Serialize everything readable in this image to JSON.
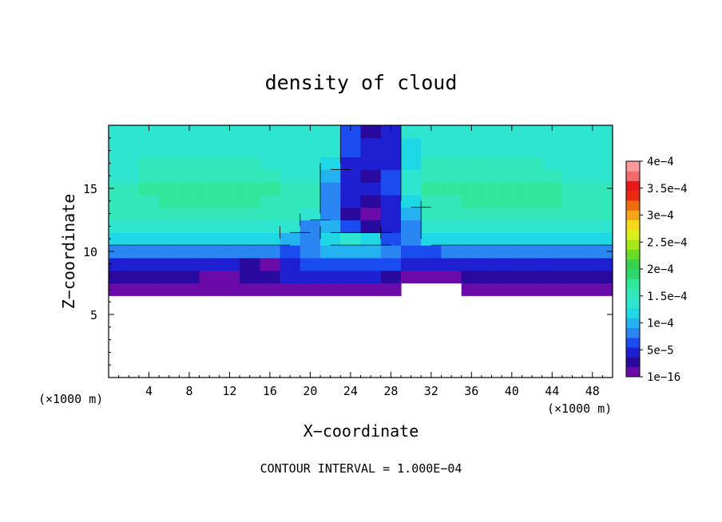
{
  "chart_data": {
    "type": "heatmap",
    "title": "density of cloud",
    "xlabel": "X−coordinate",
    "ylabel": "Z−coordinate",
    "x_unit_label": "(×1000 m)",
    "y_unit_label": "(×1000 m)",
    "footer": "CONTOUR INTERVAL = 1.000E−04",
    "xlim": [
      0,
      50
    ],
    "ylim": [
      0,
      20
    ],
    "x_ticks": [
      4,
      8,
      12,
      16,
      20,
      24,
      28,
      32,
      36,
      40,
      44,
      48
    ],
    "y_ticks": [
      5,
      10,
      15
    ],
    "colorbar": {
      "labels": [
        "1e−16",
        "5e−5",
        "1e−4",
        "1.5e−4",
        "2e−4",
        "2.5e−4",
        "3e−4",
        "3.5e−4",
        "4e−4"
      ],
      "colors": [
        "#6a0aa8",
        "#2a0a9e",
        "#1f1fd2",
        "#1b4cf0",
        "#2a86f2",
        "#25b2f0",
        "#1ed8e6",
        "#2ee6cf",
        "#33e8b8",
        "#2fe89a",
        "#2ed66c",
        "#36d24a",
        "#69dc2a",
        "#a5e81a",
        "#dcef1a",
        "#f6d81a",
        "#f6a51a",
        "#f06a10",
        "#e82a10",
        "#e61818",
        "#f26a6a",
        "#ff9a9a"
      ]
    },
    "data": {
      "x": [
        0,
        2,
        4,
        6,
        8,
        10,
        12,
        14,
        16,
        18,
        20,
        22,
        24,
        26,
        28,
        30,
        32,
        34,
        36,
        38,
        40,
        42,
        44,
        46,
        48,
        50
      ],
      "z": [
        0,
        2,
        4,
        6,
        7,
        8,
        9,
        10,
        11,
        12,
        13,
        14,
        15,
        16,
        17,
        18,
        20
      ],
      "levels_note": "values in colorbar level indices (0 = 1e-16, 21 = 4e-4); null = no cloud",
      "grid": [
        [
          null,
          null,
          null,
          null,
          null,
          null,
          null,
          null,
          null,
          null,
          null,
          null,
          null,
          null,
          null,
          null,
          null,
          null,
          null,
          null,
          null,
          null,
          null,
          null,
          null,
          null
        ],
        [
          null,
          null,
          null,
          null,
          null,
          null,
          null,
          null,
          null,
          null,
          null,
          null,
          null,
          null,
          null,
          null,
          null,
          null,
          null,
          null,
          null,
          null,
          null,
          null,
          null,
          null
        ],
        [
          null,
          null,
          null,
          null,
          null,
          null,
          null,
          null,
          null,
          null,
          null,
          null,
          null,
          null,
          null,
          null,
          null,
          null,
          null,
          null,
          null,
          null,
          null,
          null,
          null,
          null
        ],
        [
          null,
          null,
          null,
          null,
          null,
          null,
          null,
          null,
          null,
          null,
          null,
          null,
          null,
          null,
          null,
          null,
          null,
          null,
          null,
          null,
          null,
          null,
          null,
          null,
          null,
          null
        ],
        [
          0,
          0,
          0,
          0,
          0,
          0,
          0,
          0,
          0,
          0,
          0,
          0,
          0,
          0,
          0,
          null,
          null,
          null,
          0,
          0,
          0,
          0,
          0,
          0,
          0,
          0
        ],
        [
          1,
          1,
          1,
          1,
          1,
          0,
          0,
          1,
          1,
          2,
          2,
          2,
          2,
          2,
          1,
          0,
          0,
          0,
          1,
          1,
          1,
          1,
          1,
          1,
          1,
          1
        ],
        [
          2,
          2,
          2,
          2,
          2,
          2,
          2,
          1,
          0,
          2,
          3,
          3,
          3,
          3,
          3,
          2,
          2,
          2,
          2,
          2,
          2,
          2,
          2,
          2,
          2,
          2
        ],
        [
          4,
          4,
          4,
          4,
          4,
          4,
          4,
          4,
          4,
          3,
          4,
          5,
          5,
          5,
          4,
          3,
          3,
          4,
          4,
          4,
          4,
          4,
          4,
          4,
          4,
          4
        ],
        [
          6,
          6,
          6,
          6,
          6,
          6,
          6,
          6,
          6,
          5,
          4,
          6,
          7,
          6,
          3,
          4,
          6,
          6,
          6,
          6,
          6,
          6,
          6,
          6,
          6,
          6
        ],
        [
          7,
          7,
          7,
          7,
          7,
          7,
          7,
          7,
          7,
          7,
          4,
          5,
          3,
          1,
          2,
          4,
          7,
          7,
          7,
          7,
          7,
          7,
          7,
          7,
          7,
          7
        ],
        [
          8,
          8,
          8,
          8,
          8,
          8,
          8,
          8,
          8,
          8,
          7,
          4,
          1,
          0,
          2,
          5,
          8,
          8,
          8,
          8,
          8,
          8,
          8,
          8,
          8,
          8
        ],
        [
          8,
          8,
          8,
          9,
          9,
          9,
          9,
          9,
          8,
          8,
          8,
          4,
          2,
          1,
          2,
          6,
          8,
          8,
          9,
          9,
          9,
          9,
          9,
          8,
          8,
          8
        ],
        [
          8,
          8,
          9,
          9,
          9,
          9,
          9,
          9,
          9,
          8,
          8,
          4,
          2,
          2,
          3,
          7,
          9,
          9,
          9,
          9,
          9,
          9,
          9,
          8,
          8,
          8
        ],
        [
          7,
          7,
          8,
          8,
          8,
          8,
          8,
          8,
          8,
          7,
          7,
          5,
          2,
          1,
          3,
          7,
          8,
          8,
          8,
          8,
          8,
          8,
          8,
          7,
          7,
          7
        ],
        [
          7,
          7,
          8,
          8,
          8,
          8,
          8,
          8,
          7,
          7,
          7,
          6,
          2,
          2,
          2,
          6,
          8,
          8,
          8,
          8,
          8,
          8,
          7,
          7,
          7,
          7
        ],
        [
          7,
          7,
          7,
          7,
          7,
          7,
          7,
          7,
          7,
          7,
          7,
          7,
          3,
          2,
          2,
          6,
          7,
          7,
          7,
          7,
          7,
          7,
          7,
          7,
          7,
          7
        ],
        [
          7,
          7,
          7,
          7,
          7,
          7,
          7,
          7,
          7,
          7,
          7,
          7,
          3,
          1,
          2,
          7,
          7,
          7,
          7,
          7,
          7,
          7,
          7,
          7,
          7,
          7
        ]
      ]
    },
    "annotation": "black contour line at the 1e-4 level"
  }
}
